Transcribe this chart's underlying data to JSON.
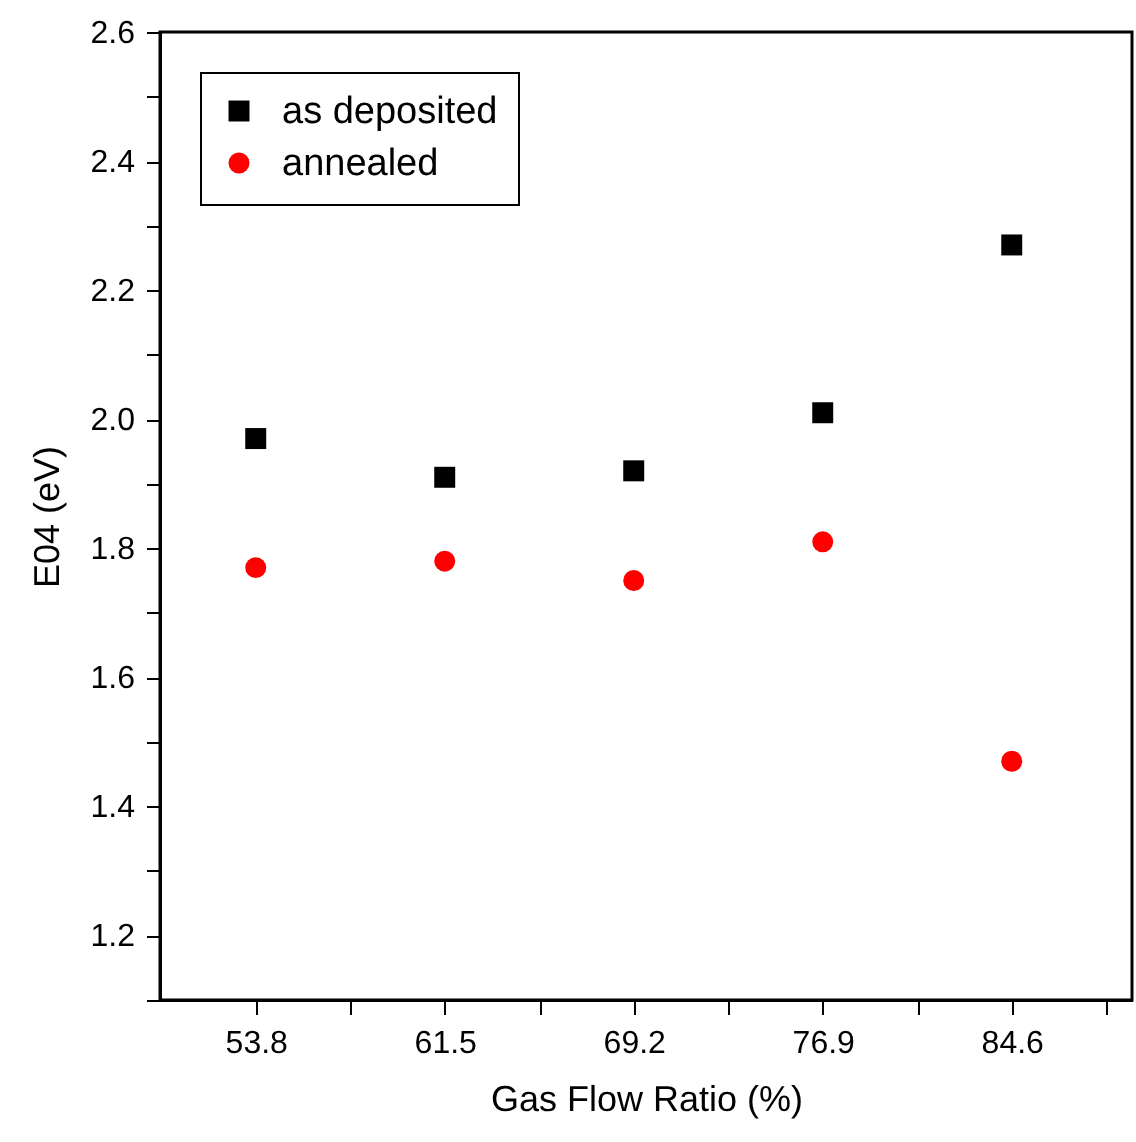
{
  "chart_data": {
    "type": "scatter",
    "xlabel": "Gas Flow Ratio (%)",
    "ylabel": "E04 (eV)",
    "x": [
      53.8,
      61.5,
      69.2,
      76.9,
      84.6
    ],
    "series": [
      {
        "name": "as deposited",
        "color": "#000000",
        "marker": "square",
        "values": [
          1.97,
          1.91,
          1.92,
          2.01,
          2.27
        ]
      },
      {
        "name": "annealed",
        "color": "#ff0000",
        "marker": "circle",
        "values": [
          1.77,
          1.78,
          1.75,
          1.81,
          1.47
        ]
      }
    ],
    "xlim": [
      49.9,
      89.5
    ],
    "xticks": [
      53.8,
      {
        "value": 57.65,
        "label": null
      },
      61.5,
      {
        "value": 65.35,
        "label": null
      },
      69.2,
      {
        "value": 73.05,
        "label": null
      },
      76.9,
      {
        "value": 80.75,
        "label": null
      },
      84.6,
      {
        "value": 88.45,
        "label": null
      }
    ],
    "ylim": [
      1.1,
      2.6
    ],
    "yticks": [
      {
        "value": 1.1,
        "label": null
      },
      {
        "value": 1.2,
        "label": "1.2"
      },
      {
        "value": 1.3,
        "label": null
      },
      {
        "value": 1.4,
        "label": "1.4"
      },
      {
        "value": 1.5,
        "label": null
      },
      {
        "value": 1.6,
        "label": "1.6"
      },
      {
        "value": 1.7,
        "label": null
      },
      {
        "value": 1.8,
        "label": "1.8"
      },
      {
        "value": 1.9,
        "label": null
      },
      {
        "value": 2,
        "label": "2.0"
      },
      {
        "value": 2.1,
        "label": null
      },
      {
        "value": 2.2,
        "label": "2.2"
      },
      {
        "value": 2.3,
        "label": null
      },
      {
        "value": 2.4,
        "label": "2.4"
      },
      {
        "value": 2.5,
        "label": null
      },
      {
        "value": 2.6,
        "label": "2.6"
      }
    ],
    "grid": false,
    "legend": "top left"
  }
}
